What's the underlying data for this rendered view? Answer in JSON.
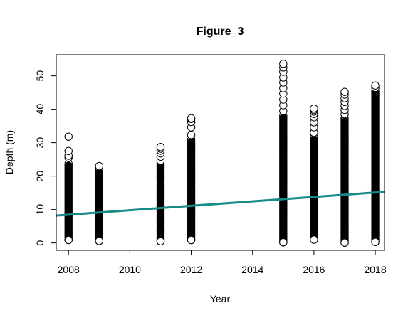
{
  "chart_data": {
    "type": "scatter",
    "title": "Figure_3",
    "xlabel": "Year",
    "ylabel": "Depth (m)",
    "xlim": [
      2007.6,
      2018.3
    ],
    "ylim": [
      -2.2,
      56.3
    ],
    "x_ticks": [
      2008,
      2010,
      2012,
      2014,
      2016,
      2018
    ],
    "y_ticks": [
      0,
      10,
      20,
      30,
      40,
      50
    ],
    "x_tick_labels": [
      "2008",
      "2010",
      "2012",
      "2014",
      "2016",
      "2018"
    ],
    "y_tick_labels": [
      "0",
      "10",
      "20",
      "30",
      "40",
      "50"
    ],
    "grid": false,
    "legend": "none",
    "point_style": "open circle",
    "point_color": "#000000",
    "point_groups": [
      {
        "x": 2008,
        "dense_min": 0.9,
        "dense_max": 24.2,
        "outliers": [
          25.5,
          26.1,
          27.5,
          31.8
        ]
      },
      {
        "x": 2009,
        "dense_min": 0.6,
        "dense_max": 22.3,
        "outliers": [
          23.0
        ]
      },
      {
        "x": 2011,
        "dense_min": 0.5,
        "dense_max": 24.0,
        "outliers": [
          24.6,
          25.8,
          26.8,
          27.6,
          28.2,
          28.7
        ]
      },
      {
        "x": 2012,
        "dense_min": 0.9,
        "dense_max": 31.2,
        "outliers": [
          32.3,
          34.6,
          36.2,
          37.1,
          37.3
        ]
      },
      {
        "x": 2015,
        "dense_min": 0.2,
        "dense_max": 38.5,
        "outliers": [
          39.5,
          41.2,
          42.9,
          44.7,
          46.3,
          48.0,
          49.5,
          51.2,
          52.5,
          53.6
        ]
      },
      {
        "x": 2016,
        "dense_min": 1.0,
        "dense_max": 32.0,
        "outliers": [
          33.0,
          34.6,
          36.1,
          37.6,
          38.6,
          39.3,
          39.8,
          40.2
        ]
      },
      {
        "x": 2017,
        "dense_min": 0.1,
        "dense_max": 37.5,
        "outliers": [
          38.5,
          39.8,
          41.0,
          42.2,
          43.3,
          44.4,
          45.2
        ]
      },
      {
        "x": 2018,
        "dense_min": 0.3,
        "dense_max": 45.7,
        "outliers": [
          46.4,
          47.1
        ]
      }
    ],
    "trendline": {
      "color": "#178a8a",
      "x": [
        2007.6,
        2018.3
      ],
      "y": [
        8.2,
        15.3
      ]
    }
  }
}
